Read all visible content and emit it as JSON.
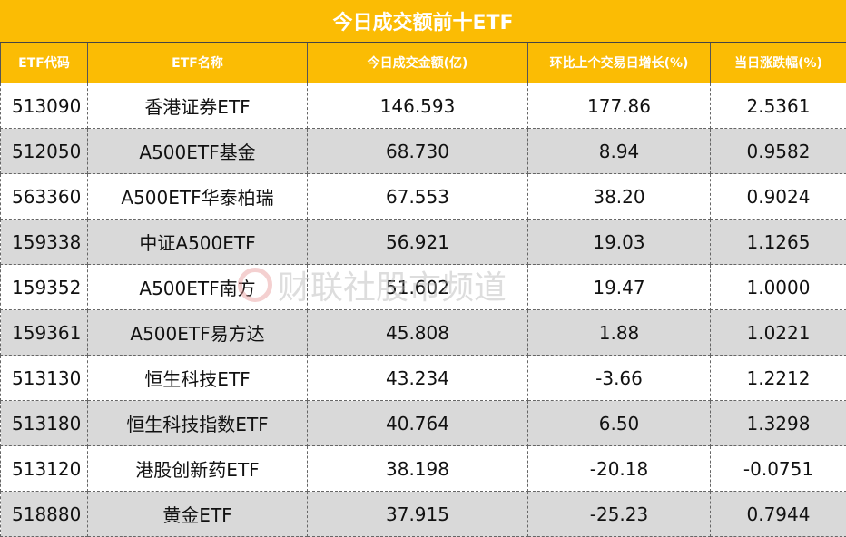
{
  "title": "今日成交额前十ETF",
  "headers": [
    "ETF代码",
    "ETF名称",
    "今日成交金额(亿)",
    "环比上个交易日增长(%)",
    "当日涨跌幅(%)"
  ],
  "rows": [
    [
      "513090",
      "香港证券ETF",
      "146.593",
      "177.86",
      "2.5361"
    ],
    [
      "512050",
      "A500ETF基金",
      "68.730",
      "8.94",
      "0.9582"
    ],
    [
      "563360",
      "A500ETF华泰柏瑞",
      "67.553",
      "38.20",
      "0.9024"
    ],
    [
      "159338",
      "中证A500ETF",
      "56.921",
      "19.03",
      "1.1265"
    ],
    [
      "159352",
      "A500ETF南方",
      "51.602",
      "19.47",
      "1.0000"
    ],
    [
      "159361",
      "A500ETF易方达",
      "45.808",
      "1.88",
      "1.0221"
    ],
    [
      "513130",
      "恒生科技ETF",
      "43.234",
      "-3.66",
      "1.2212"
    ],
    [
      "513180",
      "恒生科技指数ETF",
      "40.764",
      "6.50",
      "1.3298"
    ],
    [
      "513120",
      "港股创新药ETF",
      "38.198",
      "-20.18",
      "-0.0751"
    ],
    [
      "518880",
      "黄金ETF",
      "37.915",
      "-25.23",
      "0.7944"
    ]
  ],
  "watermark": "财联社股市频道",
  "colors": {
    "header": "#FBBC04",
    "alt_row": "#D9D9D9"
  }
}
